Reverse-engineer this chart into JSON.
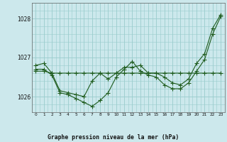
{
  "title": "Graphe pression niveau de la mer (hPa)",
  "background_color": "#cce8ec",
  "grid_color": "#99cccc",
  "line_color": "#1e5c1e",
  "x_labels": [
    "0",
    "1",
    "2",
    "3",
    "4",
    "5",
    "6",
    "7",
    "8",
    "9",
    "10",
    "11",
    "12",
    "13",
    "14",
    "15",
    "16",
    "17",
    "18",
    "19",
    "20",
    "21",
    "22",
    "23"
  ],
  "series1": [
    1026.8,
    1026.85,
    1026.6,
    1026.15,
    1026.1,
    1026.05,
    1026.0,
    1026.4,
    1026.6,
    1026.45,
    1026.6,
    1026.75,
    1026.75,
    1026.8,
    1026.6,
    1026.6,
    1026.5,
    1026.35,
    1026.3,
    1026.45,
    1026.85,
    1027.1,
    1027.75,
    1028.1
  ],
  "series2": [
    1026.7,
    1026.7,
    1026.55,
    1026.1,
    1026.05,
    1025.95,
    1025.85,
    1025.75,
    1025.9,
    1026.1,
    1026.5,
    1026.7,
    1026.9,
    1026.65,
    1026.55,
    1026.5,
    1026.3,
    1026.2,
    1026.2,
    1026.35,
    1026.65,
    1026.95,
    1027.6,
    1028.05
  ],
  "series3": [
    1026.65,
    1026.65,
    1026.6,
    1026.6,
    1026.6,
    1026.6,
    1026.6,
    1026.6,
    1026.6,
    1026.6,
    1026.6,
    1026.6,
    1026.6,
    1026.6,
    1026.6,
    1026.6,
    1026.6,
    1026.6,
    1026.6,
    1026.6,
    1026.6,
    1026.6,
    1026.6,
    1026.6
  ],
  "ylim": [
    1025.6,
    1028.4
  ],
  "ytick_positions": [
    1026.0,
    1027.0,
    1028.0
  ],
  "ytick_labels": [
    "1026",
    "1027",
    "1028"
  ],
  "marker_size": 2.0,
  "linewidth": 0.8
}
